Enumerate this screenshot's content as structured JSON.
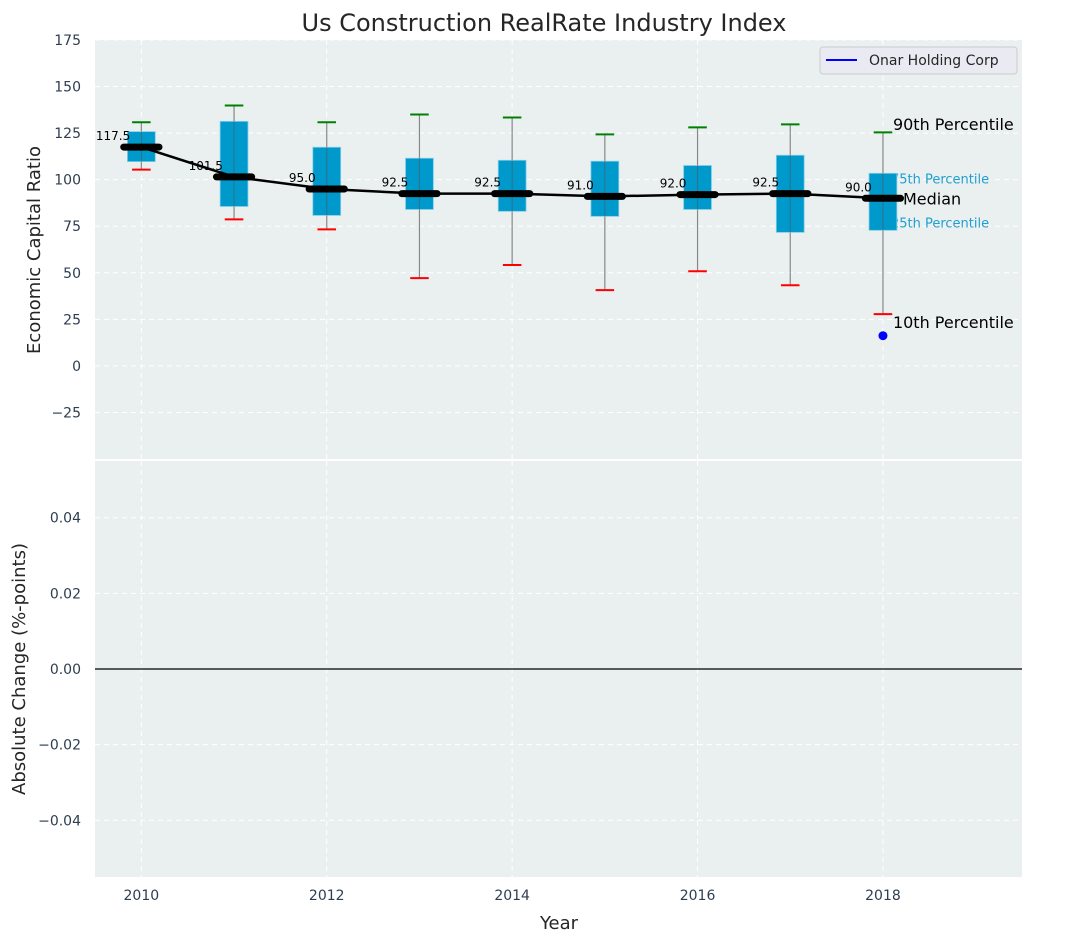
{
  "chart_data": [
    {
      "type": "box",
      "title": "Us Construction RealRate Industry Index",
      "ylabel": "Economic Capital Ratio",
      "xlim": [
        2009.5,
        2019.5
      ],
      "ylim": [
        -50,
        175
      ],
      "yticks": [
        -25,
        0,
        25,
        50,
        75,
        100,
        125,
        150,
        175
      ],
      "yticklabels": [
        "−25",
        "0",
        "25",
        "50",
        "75",
        "100",
        "125",
        "150",
        "175"
      ],
      "grid": true,
      "legend": {
        "position": "top-right",
        "entries": [
          {
            "label": "Onar Holding Corp",
            "color": "#0000ff"
          }
        ]
      },
      "years": [
        2010,
        2011,
        2012,
        2013,
        2014,
        2015,
        2016,
        2017,
        2018
      ],
      "p10": [
        105.4,
        78.7,
        73.3,
        47.1,
        54.2,
        40.7,
        50.8,
        43.3,
        27.8
      ],
      "p25": [
        109.7,
        85.6,
        80.8,
        84.0,
        83.0,
        80.3,
        84.0,
        71.7,
        72.8
      ],
      "median": [
        117.5,
        101.5,
        95.0,
        92.5,
        92.5,
        91.0,
        92.0,
        92.5,
        90.0
      ],
      "median_labels": [
        "117.5",
        "101.5",
        "95.0",
        "92.5",
        "92.5",
        "91.0",
        "92.0",
        "92.5",
        "90.0"
      ],
      "p75": [
        125.8,
        131.3,
        117.4,
        111.5,
        110.4,
        109.9,
        107.6,
        113.1,
        103.4
      ],
      "p90": [
        130.8,
        139.8,
        130.8,
        135.0,
        133.4,
        124.3,
        128.1,
        129.7,
        125.4
      ],
      "company_points": [
        {
          "year": 2018,
          "value": 16.2
        }
      ],
      "annotations": [
        {
          "text": "90th Percentile",
          "value": 130,
          "color": "#000000"
        },
        {
          "text": "75th Percentile",
          "value": 100,
          "color": "#1f9fd0"
        },
        {
          "text": "Median",
          "value": 90,
          "color": "#000000"
        },
        {
          "text": "25th Percentile",
          "value": 76.5,
          "color": "#1f9fd0"
        },
        {
          "text": "10th Percentile",
          "value": 23.5,
          "color": "#000000"
        }
      ],
      "colors": {
        "box": "#0099cc",
        "p90": "#008000",
        "p10": "#ff0000",
        "median": "#000000",
        "point": "#0000ff",
        "bg": "#eaeff0"
      }
    },
    {
      "type": "line",
      "xlabel": "Year",
      "ylabel": "Absolute Change (%-points)",
      "xlim": [
        2009.5,
        2019.5
      ],
      "ylim": [
        -0.055,
        0.055
      ],
      "xticks": [
        2010,
        2012,
        2014,
        2016,
        2018
      ],
      "xticklabels": [
        "2010",
        "2012",
        "2014",
        "2016",
        "2018"
      ],
      "yticks": [
        -0.04,
        -0.02,
        0.0,
        0.02,
        0.04
      ],
      "yticklabels": [
        "−0.04",
        "−0.02",
        "0.00",
        "0.02",
        "0.04"
      ],
      "hline": 0,
      "series": []
    }
  ]
}
